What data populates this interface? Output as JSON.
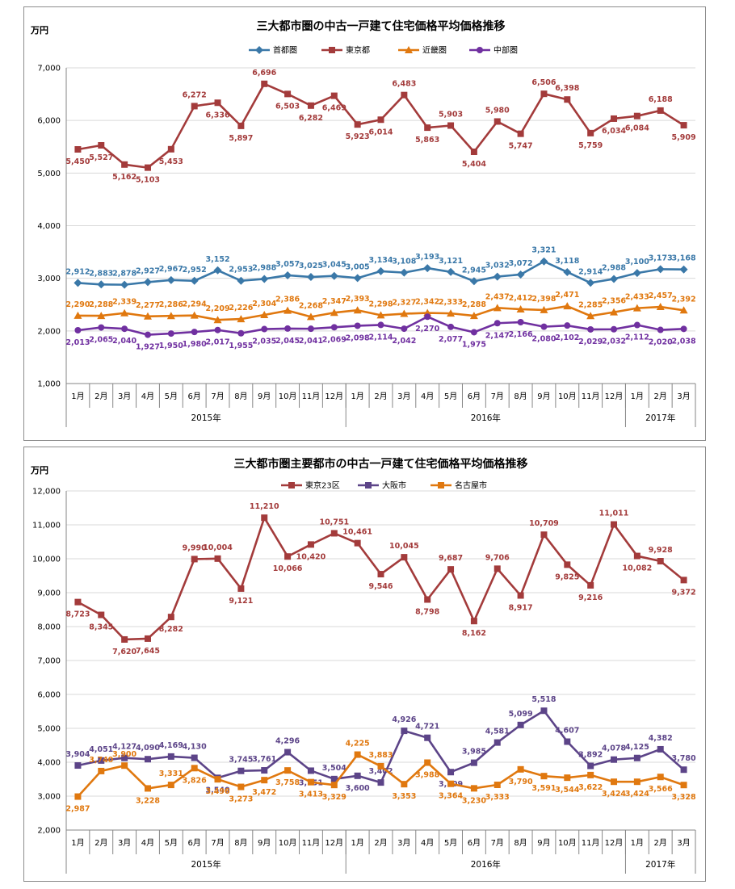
{
  "chart_data": [
    {
      "type": "line",
      "title": "三大都市圏の中古一戸建て住宅価格平均価格推移",
      "unit_label": "万円",
      "ylim": [
        1000,
        7000
      ],
      "yticks": [
        "1,000",
        "2,000",
        "3,000",
        "4,000",
        "5,000",
        "6,000",
        "7,000"
      ],
      "grid": true,
      "legend_position": "top",
      "categories": [
        "1月",
        "2月",
        "3月",
        "4月",
        "5月",
        "6月",
        "7月",
        "8月",
        "9月",
        "10月",
        "11月",
        "12月",
        "1月",
        "2月",
        "3月",
        "4月",
        "5月",
        "6月",
        "7月",
        "8月",
        "9月",
        "10月",
        "11月",
        "12月",
        "1月",
        "2月",
        "3月"
      ],
      "year_groups": [
        {
          "label": "2015年",
          "count": 12
        },
        {
          "label": "2016年",
          "count": 12
        },
        {
          "label": "2017年",
          "count": 3
        }
      ],
      "series": [
        {
          "name": "首都圏",
          "color": "#3a78a8",
          "marker": "diamond",
          "label_pos": "above",
          "values": [
            2912,
            2883,
            2878,
            2927,
            2967,
            2952,
            3152,
            2953,
            2988,
            3057,
            3025,
            3045,
            3005,
            3134,
            3108,
            3193,
            3121,
            2945,
            3032,
            3072,
            3321,
            3118,
            2914,
            2988,
            3100,
            3173,
            3168
          ],
          "labels": [
            "2,912",
            "2,883",
            "2,878",
            "2,927",
            "2,967",
            "2,952",
            "3,152",
            "2,953",
            "2,988",
            "3,057",
            "3,025",
            "3,045",
            "3,005",
            "3,134",
            "3,108",
            "3,193",
            "3,121",
            "2,945",
            "3,032",
            "3,072",
            "3,321",
            "3,118",
            "2,914",
            "2,988",
            "3,100",
            "3,173",
            "3,168"
          ]
        },
        {
          "name": "東京都",
          "color": "#a33b3b",
          "marker": "square",
          "label_side": [
            1,
            1,
            1,
            1,
            1,
            -1,
            1,
            1,
            -1,
            1,
            1,
            1,
            1,
            1,
            -1,
            1,
            -1,
            1,
            -1,
            1,
            -1,
            -1,
            1,
            1,
            1,
            -1,
            1
          ],
          "values": [
            5450,
            5527,
            5162,
            5103,
            5453,
            6272,
            6336,
            5897,
            6696,
            6503,
            6282,
            6469,
            5923,
            6014,
            6483,
            5863,
            5903,
            5404,
            5980,
            5747,
            6506,
            6398,
            5759,
            6034,
            6084,
            6188,
            5909
          ],
          "labels": [
            "5,450",
            "5,527",
            "5,162",
            "5,103",
            "5,453",
            "6,272",
            "6,336",
            "5,897",
            "6,696",
            "6,503",
            "6,282",
            "6,469",
            "5,923",
            "6,014",
            "6,483",
            "5,863",
            "5,903",
            "5,404",
            "5,980",
            "5,747",
            "6,506",
            "6,398",
            "5,759",
            "6,034",
            "6,084",
            "6,188",
            "5,909"
          ]
        },
        {
          "name": "近畿圏",
          "color": "#e0780f",
          "marker": "triangle",
          "label_pos": "above",
          "values": [
            2290,
            2288,
            2339,
            2277,
            2286,
            2294,
            2209,
            2226,
            2304,
            2386,
            2268,
            2347,
            2393,
            2298,
            2327,
            2342,
            2333,
            2288,
            2437,
            2412,
            2398,
            2471,
            2285,
            2356,
            2433,
            2457,
            2392
          ],
          "labels": [
            "2,290",
            "2,288",
            "2,339",
            "2,277",
            "2,286",
            "2,294",
            "2,209",
            "2,226",
            "2,304",
            "2,386",
            "2,268",
            "2,347",
            "2,393",
            "2,298",
            "2,327",
            "2,342",
            "2,333",
            "2,288",
            "2,437",
            "2,412",
            "2,398",
            "2,471",
            "2,285",
            "2,356",
            "2,433",
            "2,457",
            "2,392"
          ]
        },
        {
          "name": "中部圏",
          "color": "#7030a0",
          "marker": "circle",
          "label_pos": "below",
          "values": [
            2013,
            2065,
            2040,
            1927,
            1950,
            1980,
            2017,
            1955,
            2035,
            2045,
            2041,
            2069,
            2098,
            2114,
            2042,
            2270,
            2077,
            1975,
            2147,
            2166,
            2080,
            2102,
            2029,
            2032,
            2112,
            2020,
            2038
          ],
          "labels": [
            "2,013",
            "2,065",
            "2,040",
            "1,927",
            "1,950",
            "1,980",
            "2,017",
            "1,955",
            "2,035",
            "2,045",
            "2,041",
            "2,069",
            "2,098",
            "2,114",
            "2,042",
            "2,270",
            "2,077",
            "1,975",
            "2,147",
            "2,166",
            "2,080",
            "2,102",
            "2,029",
            "2,032",
            "2,112",
            "2,020",
            "2,038"
          ]
        }
      ]
    },
    {
      "type": "line",
      "title": "三大都市圏主要都市の中古一戸建て住宅価格平均価格推移",
      "unit_label": "万円",
      "ylim": [
        2000,
        12000
      ],
      "yticks": [
        "2,000",
        "3,000",
        "4,000",
        "5,000",
        "6,000",
        "7,000",
        "8,000",
        "9,000",
        "10,000",
        "11,000",
        "12,000"
      ],
      "grid": true,
      "legend_position": "top",
      "categories": [
        "1月",
        "2月",
        "3月",
        "4月",
        "5月",
        "6月",
        "7月",
        "8月",
        "9月",
        "10月",
        "11月",
        "12月",
        "1月",
        "2月",
        "3月",
        "4月",
        "5月",
        "6月",
        "7月",
        "8月",
        "9月",
        "10月",
        "11月",
        "12月",
        "1月",
        "2月",
        "3月"
      ],
      "year_groups": [
        {
          "label": "2015年",
          "count": 12
        },
        {
          "label": "2016年",
          "count": 12
        },
        {
          "label": "2017年",
          "count": 3
        }
      ],
      "series": [
        {
          "name": "東京23区",
          "color": "#a33b3b",
          "marker": "square",
          "label_side": [
            1,
            1,
            1,
            1,
            1,
            -1,
            -1,
            1,
            -1,
            1,
            1,
            -1,
            -1,
            1,
            -1,
            1,
            -1,
            1,
            -1,
            1,
            -1,
            1,
            1,
            -1,
            1,
            -1,
            1
          ],
          "values": [
            8723,
            8345,
            7620,
            7645,
            8282,
            9990,
            10004,
            9121,
            11210,
            10066,
            10420,
            10751,
            10461,
            9546,
            10045,
            8798,
            9687,
            8162,
            9706,
            8917,
            10709,
            9825,
            9216,
            11011,
            10082,
            9928,
            9372
          ],
          "labels": [
            "8,723",
            "8,345",
            "7,620",
            "7,645",
            "8,282",
            "9,990",
            "10,004",
            "9,121",
            "11,210",
            "10,066",
            "10,420",
            "10,751",
            "10,461",
            "9,546",
            "10,045",
            "8,798",
            "9,687",
            "8,162",
            "9,706",
            "8,917",
            "10,709",
            "9,825",
            "9,216",
            "11,011",
            "10,082",
            "9,928",
            "9,372"
          ]
        },
        {
          "name": "大阪市",
          "color": "#5c4488",
          "marker": "square",
          "label_side": [
            -1,
            -1,
            -1,
            -1,
            -1,
            -1,
            1,
            -1,
            -1,
            -1,
            1,
            -1,
            1,
            -1,
            -1,
            -1,
            1,
            -1,
            -1,
            -1,
            -1,
            -1,
            -1,
            -1,
            -1,
            -1,
            -1
          ],
          "values": [
            3904,
            4051,
            4127,
            4090,
            4169,
            4130,
            3540,
            3745,
            3761,
            4296,
            3751,
            3504,
            3600,
            3402,
            4926,
            4721,
            3709,
            3985,
            4581,
            5099,
            5518,
            4607,
            3892,
            4078,
            4125,
            4382,
            3780
          ],
          "labels": [
            "3,904",
            "4,051",
            "4,127",
            "4,090",
            "4,169",
            "4,130",
            "3,540",
            "3,745",
            "3,761",
            "4,296",
            "3,751",
            "3,504",
            "3,600",
            "3,402",
            "4,926",
            "4,721",
            "3,709",
            "3,985",
            "4,581",
            "5,099",
            "5,518",
            "4,607",
            "3,892",
            "4,078",
            "4,125",
            "4,382",
            "3,780"
          ]
        },
        {
          "name": "名古屋市",
          "color": "#e0780f",
          "marker": "square",
          "label_side": [
            1,
            -1,
            -1,
            1,
            -1,
            1,
            1,
            1,
            1,
            1,
            1,
            1,
            -1,
            -1,
            1,
            1,
            1,
            1,
            1,
            1,
            1,
            1,
            1,
            1,
            1,
            1,
            1
          ],
          "values": [
            2987,
            3740,
            3900,
            3228,
            3331,
            3826,
            3496,
            3273,
            3472,
            3758,
            3413,
            3329,
            4225,
            3883,
            3353,
            3988,
            3364,
            3230,
            3333,
            3790,
            3591,
            3544,
            3622,
            3424,
            3424,
            3566,
            3328
          ],
          "labels": [
            "2,987",
            "3,740",
            "3,900",
            "3,228",
            "3,331",
            "3,826",
            "3,496",
            "3,273",
            "3,472",
            "3,758",
            "3,413",
            "3,329",
            "4,225",
            "3,883",
            "3,353",
            "3,988",
            "3,364",
            "3,230",
            "3,333",
            "3,790",
            "3,591",
            "3,544",
            "3,622",
            "3,424",
            "3,424",
            "3,566",
            "3,328"
          ]
        }
      ]
    }
  ]
}
